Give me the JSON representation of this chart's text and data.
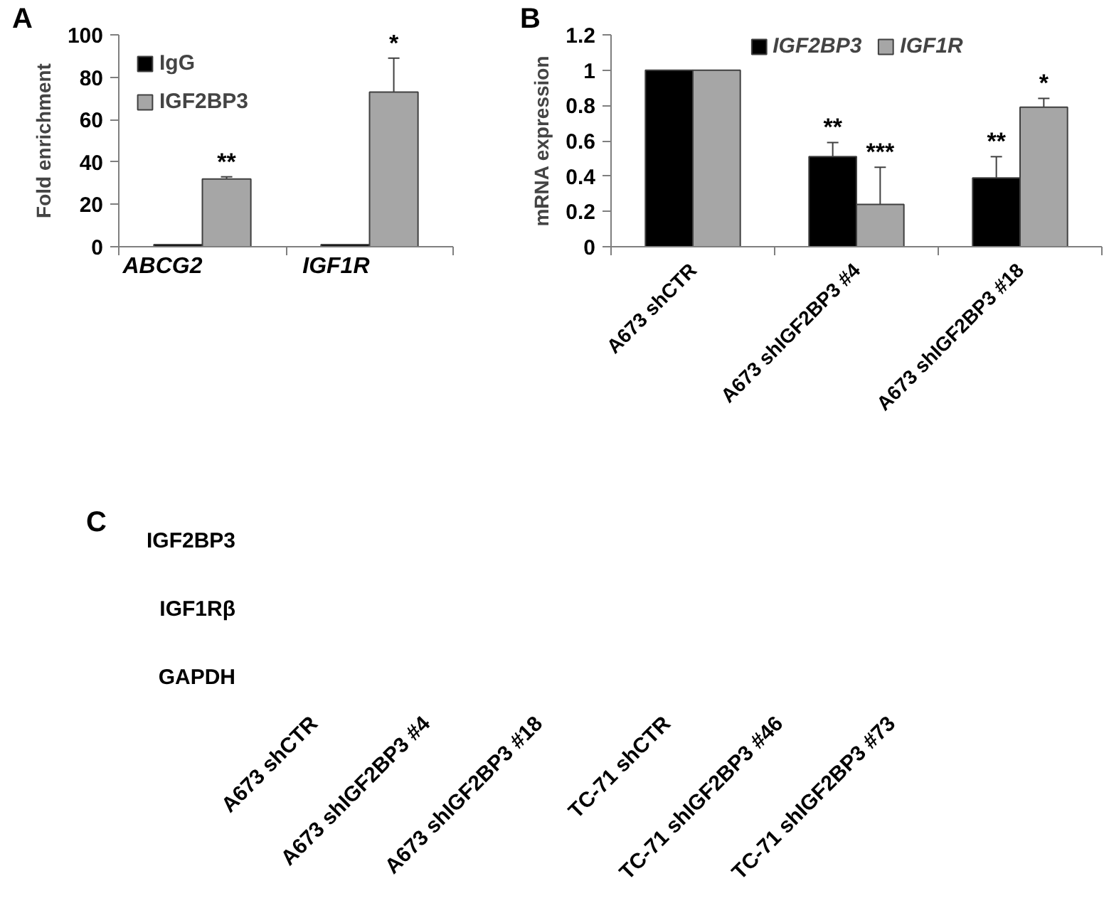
{
  "chart_data": [
    {
      "type": "bar",
      "title": "A",
      "ylabel": "Fold enrichment",
      "categories": [
        "ABCG2",
        "IGF1R"
      ],
      "series": [
        {
          "name": "IgG",
          "color": "#000000",
          "values": [
            1,
            1
          ]
        },
        {
          "name": "IGF2BP3",
          "color": "#a6a6a6",
          "values": [
            32,
            73
          ],
          "errors": [
            1,
            16
          ]
        }
      ],
      "ylim": [
        0,
        100
      ],
      "yticks": [
        0,
        20,
        40,
        60,
        80,
        100
      ],
      "legend": "top left",
      "annotations": [
        "**",
        "*"
      ]
    },
    {
      "type": "bar",
      "title": "B",
      "ylabel": "mRNA expression",
      "categories": [
        "A673 shCTR",
        "A673 shIGF2BP3 #4",
        "A673 shIGF2BP3 #18"
      ],
      "series": [
        {
          "name": "IGF2BP3",
          "color": "#000000",
          "values": [
            1,
            0.51,
            0.39
          ],
          "errors": [
            null,
            0.08,
            0.12
          ]
        },
        {
          "name": "IGF1R",
          "color": "#a6a6a6",
          "values": [
            1,
            0.24,
            0.79
          ],
          "errors": [
            null,
            0.21,
            0.05
          ]
        }
      ],
      "ylim": [
        0,
        1.2
      ],
      "yticks": [
        0,
        0.2,
        0.4,
        0.6,
        0.8,
        1,
        1.2
      ],
      "legend": "top",
      "annotations": [
        {
          "text": "**",
          "x": "A673 shIGF2BP3 #4",
          "y": 0.51
        },
        {
          "text": "***",
          "x": "A673 shIGF2BP3 #4",
          "y": 0.24
        },
        {
          "text": "**",
          "x": "A673 shIGF2BP3 #18",
          "y": 0.39
        },
        {
          "text": "*",
          "x": "A673 shIGF2BP3 #18",
          "y": 0.79
        }
      ]
    },
    {
      "type": "other",
      "title": "C",
      "categories": [
        "A673 shCTR",
        "A673 shIGF2BP3 #4",
        "A673 shIGF2BP3 #18",
        "TC-71 shCTR",
        "TC-71 shIGF2BP3 #46",
        "TC-71 shIGF2BP3 #73"
      ],
      "y_categories": [
        "IGF2BP3",
        "IGF1Rβ",
        "GAPDH"
      ]
    }
  ]
}
